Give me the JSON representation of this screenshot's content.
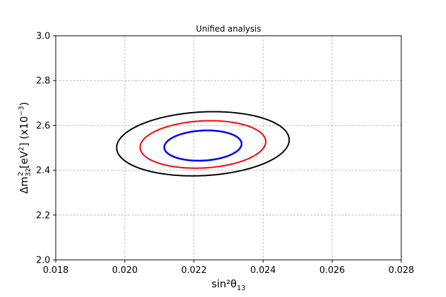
{
  "chart_data": {
    "type": "line",
    "title": "Unified analysis",
    "xlabel": "sin²θ",
    "xlabel_sub": "13",
    "ylabel_prefix": "Δm",
    "ylabel_sub": "32",
    "ylabel_sup": "2",
    "ylabel_unit": " [eV",
    "ylabel_unit_sup": "2",
    "ylabel_unit_close": "] (x10",
    "ylabel_exp": "−3",
    "ylabel_close": ")",
    "xlim": [
      0.018,
      0.028
    ],
    "ylim": [
      2.0,
      3.0
    ],
    "xticks": [
      "0.018",
      "0.020",
      "0.022",
      "0.024",
      "0.026",
      "0.028"
    ],
    "yticks": [
      "2.0",
      "2.2",
      "2.4",
      "2.6",
      "2.8",
      "3.0"
    ],
    "grid": true,
    "series": [
      {
        "color": "#000000",
        "center": [
          0.02226,
          2.518
        ],
        "semi_x": 0.0025,
        "semi_y": 0.142,
        "tilt_deg": -3
      },
      {
        "color": "#ff0000",
        "center": [
          0.02226,
          2.515
        ],
        "semi_x": 0.00182,
        "semi_y": 0.105,
        "tilt_deg": -3
      },
      {
        "color": "#0000ff",
        "center": [
          0.02226,
          2.51
        ],
        "semi_x": 0.00112,
        "semi_y": 0.067,
        "tilt_deg": -3
      }
    ]
  }
}
